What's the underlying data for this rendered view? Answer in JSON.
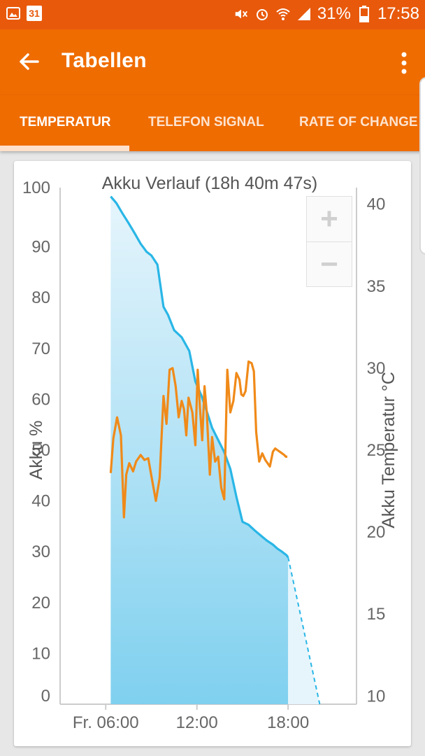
{
  "status_bar": {
    "calendar_day": "31",
    "battery_percent": "31%",
    "time": "17:58",
    "icons": [
      "gallery-icon",
      "calendar-icon",
      "mute-icon",
      "alarm-icon",
      "wifi-icon",
      "signal-icon",
      "battery-icon"
    ]
  },
  "app_bar": {
    "title": "Tabellen"
  },
  "tabs": [
    {
      "label": "TEMPERATUR",
      "selected": true
    },
    {
      "label": "TELEFON SIGNAL",
      "selected": false
    },
    {
      "label": "RATE OF CHANGE",
      "selected": false
    }
  ],
  "zoom": {
    "plus": "+",
    "minus": "−"
  },
  "colors": {
    "statusbar": "#e8590c",
    "appbar": "#ef6c00",
    "battery_line": "#29b6e6",
    "temperature_line": "#f08a19"
  },
  "chart_data": {
    "type": "line",
    "title": "Akku Verlauf (18h 40m 47s)",
    "ylabel": "Akku %",
    "y2label": "Akku Temperatur °C",
    "ylim": [
      0,
      100
    ],
    "y2lim": [
      9.5,
      40.5
    ],
    "xlim": [
      3.0,
      22.5
    ],
    "x_tick_labels": [
      "Fr. 06:00",
      "12:00",
      "18:00"
    ],
    "x_tick_values": [
      6,
      12,
      18
    ],
    "y_ticks": [
      "0",
      "10",
      "20",
      "30",
      "40",
      "50",
      "60",
      "70",
      "80",
      "90",
      "100"
    ],
    "y2_ticks": [
      "10",
      "15",
      "20",
      "25",
      "30",
      "35",
      "40"
    ],
    "series": [
      {
        "axis": "left",
        "style": "area",
        "x": [
          6.33,
          6.7,
          7.1,
          7.5,
          7.9,
          8.3,
          8.7,
          9.0,
          9.4,
          9.8,
          10.1,
          10.5,
          11.0,
          11.5,
          11.9,
          12.3,
          12.6,
          13.0,
          13.4,
          13.8,
          14.2,
          14.6,
          15.0,
          15.4,
          15.8,
          16.2,
          16.6,
          17.0,
          17.3,
          17.6,
          17.9,
          18.0
        ],
        "y": [
          99.9,
          98.6,
          96.6,
          94.7,
          92.7,
          90.6,
          89.0,
          88.3,
          86.5,
          78.2,
          76.6,
          73.6,
          72.2,
          69.5,
          63.5,
          60.7,
          58.1,
          54.4,
          52.0,
          49.6,
          46.3,
          40.8,
          35.9,
          35.3,
          34.2,
          33.2,
          32.2,
          31.4,
          30.6,
          30.0,
          29.3,
          28.9
        ]
      },
      {
        "axis": "left",
        "style": "dashed",
        "x": [
          18.0,
          20.08
        ],
        "y": [
          28.9,
          0
        ]
      },
      {
        "axis": "right",
        "style": "line",
        "x": [
          6.33,
          6.5,
          6.75,
          7.0,
          7.2,
          7.35,
          7.55,
          7.8,
          8.0,
          8.3,
          8.55,
          8.8,
          9.05,
          9.3,
          9.55,
          9.8,
          10.0,
          10.2,
          10.4,
          10.6,
          10.8,
          11.0,
          11.15,
          11.3,
          11.45,
          11.7,
          11.9,
          12.05,
          12.2,
          12.35,
          12.5,
          12.65,
          12.85,
          13.0,
          13.2,
          13.4,
          13.6,
          13.8,
          14.0,
          14.2,
          14.4,
          14.6,
          14.8,
          14.92,
          15.05,
          15.2,
          15.4,
          15.6,
          15.75,
          15.9,
          16.1,
          16.3,
          16.5,
          16.8,
          17.0,
          17.15,
          17.3,
          17.45,
          17.6,
          17.75,
          17.85,
          17.95
        ],
        "y": [
          23.6,
          25.7,
          27.0,
          25.9,
          20.9,
          23.5,
          24.2,
          23.7,
          24.3,
          24.7,
          24.4,
          24.5,
          23.2,
          21.9,
          23.3,
          28.3,
          26.6,
          29.9,
          30.0,
          28.9,
          27.0,
          28.0,
          27.5,
          25.9,
          28.2,
          27.3,
          25.3,
          29.9,
          27.6,
          25.6,
          28.9,
          27.3,
          23.5,
          25.8,
          24.3,
          24.6,
          22.7,
          22.0,
          29.9,
          27.3,
          28.0,
          29.7,
          29.3,
          28.4,
          28.3,
          28.6,
          30.4,
          30.3,
          29.8,
          26.1,
          24.3,
          24.8,
          24.4,
          24.0,
          24.9,
          25.1,
          25.0,
          24.9,
          24.8,
          24.7,
          24.6,
          24.6
        ]
      }
    ],
    "grid": false
  }
}
